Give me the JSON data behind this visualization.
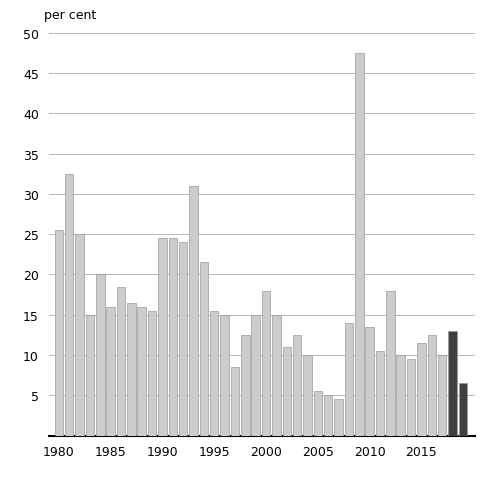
{
  "years": [
    1980,
    1981,
    1982,
    1983,
    1984,
    1985,
    1986,
    1987,
    1988,
    1989,
    1990,
    1991,
    1992,
    1993,
    1994,
    1995,
    1996,
    1997,
    1998,
    1999,
    2000,
    2001,
    2002,
    2003,
    2004,
    2005,
    2006,
    2007,
    2008,
    2009,
    2010,
    2011,
    2012,
    2013,
    2014,
    2015,
    2016,
    2017,
    2018,
    2019
  ],
  "values": [
    25.5,
    32.5,
    25.0,
    15.0,
    20.0,
    16.0,
    18.5,
    16.5,
    16.0,
    15.5,
    24.5,
    24.5,
    24.0,
    31.0,
    21.5,
    15.5,
    15.0,
    8.5,
    12.5,
    15.0,
    18.0,
    15.0,
    11.0,
    12.5,
    10.0,
    5.5,
    5.0,
    4.5,
    14.0,
    47.5,
    13.5,
    10.5,
    18.0,
    10.0,
    9.5,
    11.5,
    12.5,
    10.0,
    13.0,
    6.5
  ],
  "dark_years": [
    2018,
    2019
  ],
  "light_color": "#cccccc",
  "dark_color": "#404040",
  "ylabel": "per cent",
  "ylim": [
    0,
    50
  ],
  "yticks": [
    0,
    5,
    10,
    15,
    20,
    25,
    30,
    35,
    40,
    45,
    50
  ],
  "ytick_labels": [
    "",
    "5",
    "10",
    "15",
    "20",
    "25",
    "30",
    "35",
    "40",
    "45",
    "50"
  ],
  "xtick_positions": [
    1980,
    1985,
    1990,
    1995,
    2000,
    2005,
    2010,
    2015
  ],
  "background_color": "#ffffff",
  "bar_edgecolor": "#999999",
  "grid_color": "#aaaaaa",
  "bar_width": 0.82
}
